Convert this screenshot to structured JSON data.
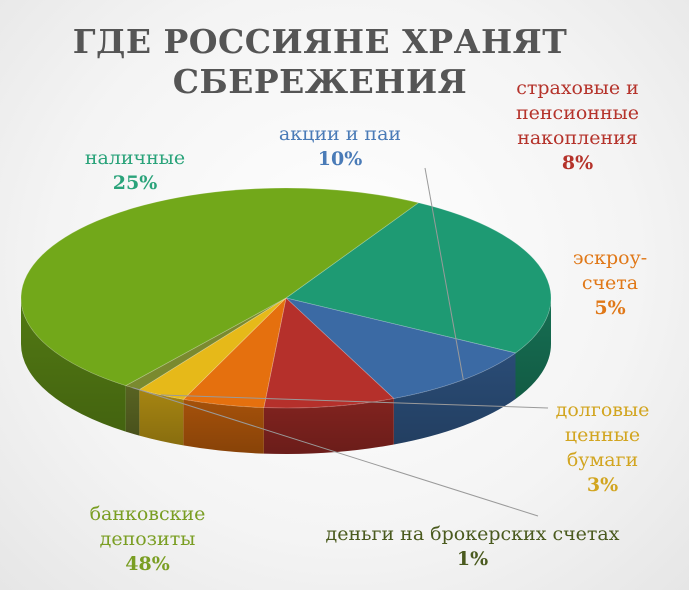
{
  "chart_data": {
    "type": "pie",
    "title": "ГДЕ РОССИЯНЕ ХРАНЯТ СБЕРЕЖЕНИЯ",
    "title_lines": [
      "ГДЕ РОССИЯНЕ ХРАНЯТ",
      "СБЕРЕЖЕНИЯ"
    ],
    "style": "3d",
    "slices": [
      {
        "name": "наличные",
        "value": 25,
        "value_label": "25%",
        "color": "#1e9a73",
        "label_color": "#2aa37a"
      },
      {
        "name": "акции и паи",
        "value": 10,
        "value_label": "10%",
        "color": "#3b6aa4",
        "label_color": "#4a7bb7"
      },
      {
        "name": "страховые и пенсионные накопления",
        "value": 8,
        "value_label": "8%",
        "color": "#b5302b",
        "label_color": "#b5332b"
      },
      {
        "name": "эскроу-счета",
        "value": 5,
        "value_label": "5%",
        "color": "#e5700e",
        "label_color": "#e07818"
      },
      {
        "name": "долговые ценные бумаги",
        "value": 3,
        "value_label": "3%",
        "color": "#e6b919",
        "label_color": "#d2a520"
      },
      {
        "name": "деньги на брокерских счетах",
        "value": 1,
        "value_label": "1%",
        "color": "#7a8a2f",
        "label_color": "#4a5a1e"
      },
      {
        "name": "банковские депозиты",
        "value": 48,
        "value_label": "48%",
        "color": "#72a81a",
        "label_color": "#7a9e23"
      }
    ]
  }
}
